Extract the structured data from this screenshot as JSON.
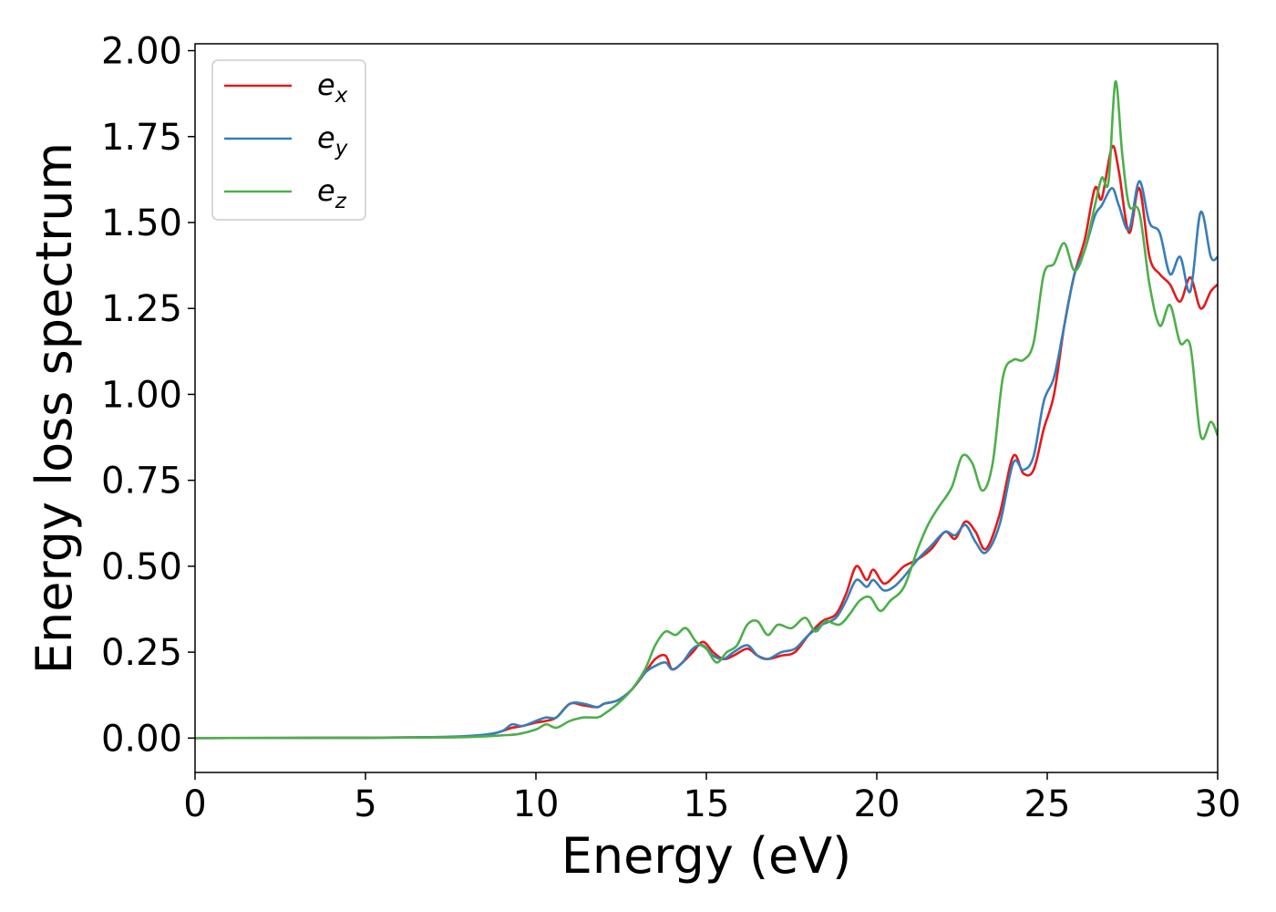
{
  "chart_data": {
    "type": "line",
    "xlabel": "Energy (eV)",
    "ylabel": "Energy loss spectrum",
    "xlim": [
      0,
      30
    ],
    "ylim": [
      -0.1,
      2.02
    ],
    "xticks": [
      0,
      5,
      10,
      15,
      20,
      25,
      30
    ],
    "xtick_labels": [
      "0",
      "5",
      "10",
      "15",
      "20",
      "25",
      "30"
    ],
    "yticks": [
      0.0,
      0.25,
      0.5,
      0.75,
      1.0,
      1.25,
      1.5,
      1.75,
      2.0
    ],
    "ytick_labels": [
      "0.00",
      "0.25",
      "0.50",
      "0.75",
      "1.00",
      "1.25",
      "1.50",
      "1.75",
      "2.00"
    ],
    "grid": false,
    "legend_position": "top-left",
    "series": [
      {
        "name": "e_x",
        "legend_base": "e",
        "legend_sub": "x",
        "color": "#e41a1c",
        "points": [
          [
            0,
            0
          ],
          [
            5,
            0.001
          ],
          [
            7.5,
            0.003
          ],
          [
            8.5,
            0.008
          ],
          [
            9,
            0.02
          ],
          [
            9.3,
            0.03
          ],
          [
            9.6,
            0.035
          ],
          [
            10,
            0.045
          ],
          [
            10.3,
            0.05
          ],
          [
            10.6,
            0.06
          ],
          [
            11,
            0.1
          ],
          [
            11.4,
            0.095
          ],
          [
            11.8,
            0.09
          ],
          [
            12,
            0.1
          ],
          [
            12.4,
            0.11
          ],
          [
            12.8,
            0.14
          ],
          [
            13.2,
            0.19
          ],
          [
            13.5,
            0.23
          ],
          [
            13.8,
            0.24
          ],
          [
            14,
            0.2
          ],
          [
            14.3,
            0.22
          ],
          [
            14.6,
            0.25
          ],
          [
            14.9,
            0.28
          ],
          [
            15.2,
            0.25
          ],
          [
            15.5,
            0.23
          ],
          [
            15.8,
            0.24
          ],
          [
            16.2,
            0.26
          ],
          [
            16.5,
            0.24
          ],
          [
            16.8,
            0.23
          ],
          [
            17.2,
            0.24
          ],
          [
            17.6,
            0.25
          ],
          [
            18,
            0.3
          ],
          [
            18.4,
            0.34
          ],
          [
            18.8,
            0.36
          ],
          [
            19.1,
            0.42
          ],
          [
            19.4,
            0.5
          ],
          [
            19.7,
            0.46
          ],
          [
            19.9,
            0.49
          ],
          [
            20.2,
            0.45
          ],
          [
            20.5,
            0.47
          ],
          [
            20.8,
            0.5
          ],
          [
            21.2,
            0.52
          ],
          [
            21.6,
            0.55
          ],
          [
            22,
            0.6
          ],
          [
            22.3,
            0.58
          ],
          [
            22.6,
            0.63
          ],
          [
            22.9,
            0.6
          ],
          [
            23.2,
            0.55
          ],
          [
            23.6,
            0.65
          ],
          [
            24,
            0.82
          ],
          [
            24.3,
            0.77
          ],
          [
            24.6,
            0.78
          ],
          [
            24.9,
            0.9
          ],
          [
            25.2,
            1.0
          ],
          [
            25.5,
            1.2
          ],
          [
            25.8,
            1.35
          ],
          [
            26.1,
            1.45
          ],
          [
            26.4,
            1.6
          ],
          [
            26.6,
            1.57
          ],
          [
            26.9,
            1.72
          ],
          [
            27.1,
            1.65
          ],
          [
            27.4,
            1.47
          ],
          [
            27.7,
            1.6
          ],
          [
            28,
            1.4
          ],
          [
            28.3,
            1.35
          ],
          [
            28.6,
            1.32
          ],
          [
            28.9,
            1.27
          ],
          [
            29.2,
            1.34
          ],
          [
            29.5,
            1.25
          ],
          [
            29.8,
            1.3
          ],
          [
            30,
            1.32
          ]
        ]
      },
      {
        "name": "e_y",
        "legend_base": "e",
        "legend_sub": "y",
        "color": "#377eb8",
        "points": [
          [
            0,
            0
          ],
          [
            5,
            0.001
          ],
          [
            7.5,
            0.004
          ],
          [
            8.5,
            0.01
          ],
          [
            9,
            0.02
          ],
          [
            9.3,
            0.04
          ],
          [
            9.6,
            0.035
          ],
          [
            10,
            0.05
          ],
          [
            10.3,
            0.06
          ],
          [
            10.6,
            0.06
          ],
          [
            11,
            0.1
          ],
          [
            11.4,
            0.1
          ],
          [
            11.8,
            0.09
          ],
          [
            12,
            0.1
          ],
          [
            12.4,
            0.11
          ],
          [
            12.8,
            0.14
          ],
          [
            13.2,
            0.19
          ],
          [
            13.5,
            0.21
          ],
          [
            13.8,
            0.22
          ],
          [
            14,
            0.2
          ],
          [
            14.3,
            0.22
          ],
          [
            14.6,
            0.26
          ],
          [
            14.9,
            0.27
          ],
          [
            15.2,
            0.24
          ],
          [
            15.5,
            0.23
          ],
          [
            15.8,
            0.25
          ],
          [
            16.2,
            0.27
          ],
          [
            16.5,
            0.24
          ],
          [
            16.8,
            0.23
          ],
          [
            17.2,
            0.25
          ],
          [
            17.6,
            0.26
          ],
          [
            18,
            0.3
          ],
          [
            18.4,
            0.33
          ],
          [
            18.8,
            0.35
          ],
          [
            19.1,
            0.4
          ],
          [
            19.4,
            0.46
          ],
          [
            19.7,
            0.44
          ],
          [
            19.9,
            0.46
          ],
          [
            20.2,
            0.43
          ],
          [
            20.5,
            0.44
          ],
          [
            20.8,
            0.47
          ],
          [
            21.2,
            0.52
          ],
          [
            21.6,
            0.56
          ],
          [
            22,
            0.6
          ],
          [
            22.3,
            0.59
          ],
          [
            22.6,
            0.62
          ],
          [
            22.9,
            0.57
          ],
          [
            23.2,
            0.54
          ],
          [
            23.6,
            0.62
          ],
          [
            24,
            0.8
          ],
          [
            24.3,
            0.78
          ],
          [
            24.6,
            0.82
          ],
          [
            24.9,
            0.98
          ],
          [
            25.2,
            1.05
          ],
          [
            25.5,
            1.2
          ],
          [
            25.8,
            1.35
          ],
          [
            26.1,
            1.42
          ],
          [
            26.4,
            1.52
          ],
          [
            26.6,
            1.55
          ],
          [
            26.9,
            1.6
          ],
          [
            27.1,
            1.55
          ],
          [
            27.4,
            1.48
          ],
          [
            27.7,
            1.62
          ],
          [
            28,
            1.5
          ],
          [
            28.3,
            1.47
          ],
          [
            28.6,
            1.35
          ],
          [
            28.9,
            1.4
          ],
          [
            29.2,
            1.3
          ],
          [
            29.5,
            1.53
          ],
          [
            29.8,
            1.4
          ],
          [
            30,
            1.4
          ]
        ]
      },
      {
        "name": "e_z",
        "legend_base": "e",
        "legend_sub": "z",
        "color": "#4daf4a",
        "points": [
          [
            0,
            0
          ],
          [
            5,
            0.001
          ],
          [
            7.5,
            0.002
          ],
          [
            8.5,
            0.005
          ],
          [
            9,
            0.008
          ],
          [
            9.5,
            0.012
          ],
          [
            10,
            0.025
          ],
          [
            10.3,
            0.04
          ],
          [
            10.6,
            0.03
          ],
          [
            11,
            0.05
          ],
          [
            11.4,
            0.06
          ],
          [
            11.8,
            0.06
          ],
          [
            12,
            0.07
          ],
          [
            12.4,
            0.1
          ],
          [
            12.8,
            0.14
          ],
          [
            13.2,
            0.2
          ],
          [
            13.5,
            0.27
          ],
          [
            13.8,
            0.31
          ],
          [
            14.1,
            0.3
          ],
          [
            14.4,
            0.32
          ],
          [
            14.7,
            0.28
          ],
          [
            15,
            0.26
          ],
          [
            15.3,
            0.22
          ],
          [
            15.6,
            0.25
          ],
          [
            15.9,
            0.27
          ],
          [
            16.2,
            0.33
          ],
          [
            16.5,
            0.34
          ],
          [
            16.8,
            0.3
          ],
          [
            17.1,
            0.33
          ],
          [
            17.5,
            0.32
          ],
          [
            17.9,
            0.35
          ],
          [
            18.2,
            0.31
          ],
          [
            18.5,
            0.34
          ],
          [
            18.9,
            0.33
          ],
          [
            19.2,
            0.36
          ],
          [
            19.5,
            0.4
          ],
          [
            19.8,
            0.41
          ],
          [
            20.1,
            0.37
          ],
          [
            20.4,
            0.4
          ],
          [
            20.8,
            0.44
          ],
          [
            21.2,
            0.55
          ],
          [
            21.5,
            0.62
          ],
          [
            21.8,
            0.67
          ],
          [
            22.2,
            0.73
          ],
          [
            22.5,
            0.82
          ],
          [
            22.8,
            0.8
          ],
          [
            23.1,
            0.72
          ],
          [
            23.4,
            0.8
          ],
          [
            23.7,
            1.05
          ],
          [
            24,
            1.1
          ],
          [
            24.3,
            1.1
          ],
          [
            24.6,
            1.15
          ],
          [
            24.9,
            1.35
          ],
          [
            25.2,
            1.38
          ],
          [
            25.5,
            1.44
          ],
          [
            25.8,
            1.36
          ],
          [
            26.1,
            1.42
          ],
          [
            26.4,
            1.55
          ],
          [
            26.6,
            1.63
          ],
          [
            26.8,
            1.62
          ],
          [
            27,
            1.91
          ],
          [
            27.2,
            1.7
          ],
          [
            27.4,
            1.55
          ],
          [
            27.7,
            1.53
          ],
          [
            28,
            1.32
          ],
          [
            28.3,
            1.2
          ],
          [
            28.6,
            1.26
          ],
          [
            28.9,
            1.15
          ],
          [
            29.2,
            1.14
          ],
          [
            29.5,
            0.88
          ],
          [
            29.8,
            0.92
          ],
          [
            30,
            0.88
          ]
        ]
      }
    ]
  }
}
